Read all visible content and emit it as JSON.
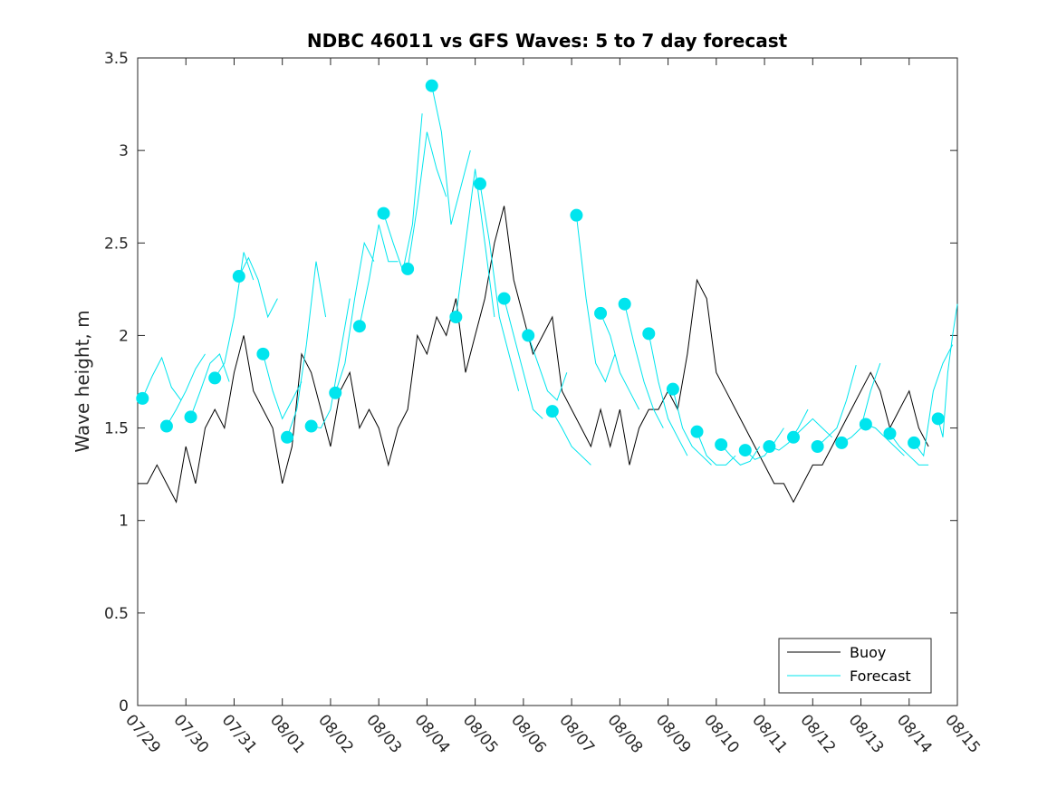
{
  "chart_data": {
    "type": "line",
    "title": "NDBC 46011 vs GFS Waves: 5 to 7 day forecast",
    "xlabel": "",
    "ylabel": "Wave height, m",
    "xlim": [
      0,
      17
    ],
    "ylim": [
      0,
      3.5
    ],
    "x_ticks": [
      "07/29",
      "07/30",
      "07/31",
      "08/01",
      "08/02",
      "08/03",
      "08/04",
      "08/05",
      "08/06",
      "08/07",
      "08/08",
      "08/09",
      "08/10",
      "08/11",
      "08/12",
      "08/13",
      "08/14",
      "08/15"
    ],
    "y_ticks": [
      "0",
      "0.5",
      "1",
      "1.5",
      "2",
      "2.5",
      "3",
      "3.5"
    ],
    "grid": false,
    "legend": {
      "position": "bottom-right",
      "entries": [
        "Buoy",
        "Forecast"
      ]
    },
    "colors": {
      "buoy": "#000000",
      "forecast": "#00e5ee"
    },
    "series": [
      {
        "name": "Buoy",
        "x": [
          0,
          0.2,
          0.4,
          0.6,
          0.8,
          1.0,
          1.2,
          1.4,
          1.6,
          1.8,
          2.0,
          2.2,
          2.4,
          2.6,
          2.8,
          3.0,
          3.2,
          3.4,
          3.6,
          3.8,
          4.0,
          4.2,
          4.4,
          4.6,
          4.8,
          5.0,
          5.2,
          5.4,
          5.6,
          5.8,
          6.0,
          6.2,
          6.4,
          6.6,
          6.8,
          7.0,
          7.2,
          7.4,
          7.6,
          7.8,
          8.0,
          8.2,
          8.4,
          8.6,
          8.8,
          9.0,
          9.2,
          9.4,
          9.6,
          9.8,
          10.0,
          10.2,
          10.4,
          10.6,
          10.8,
          11.0,
          11.2,
          11.4,
          11.6,
          11.8,
          12.0,
          12.2,
          12.4,
          12.6,
          12.8,
          13.0,
          13.2,
          13.4,
          13.6,
          13.8,
          14.0,
          14.2,
          14.4,
          14.6,
          14.8,
          15.0,
          15.2,
          15.4,
          15.6,
          15.8,
          16.0,
          16.2,
          16.4
        ],
        "values": [
          1.2,
          1.2,
          1.3,
          1.2,
          1.1,
          1.4,
          1.2,
          1.5,
          1.6,
          1.5,
          1.8,
          2.0,
          1.7,
          1.6,
          1.5,
          1.2,
          1.4,
          1.9,
          1.8,
          1.6,
          1.4,
          1.7,
          1.8,
          1.5,
          1.6,
          1.5,
          1.3,
          1.5,
          1.6,
          2.0,
          1.9,
          2.1,
          2.0,
          2.2,
          1.8,
          2.0,
          2.2,
          2.5,
          2.7,
          2.3,
          2.1,
          1.9,
          2.0,
          2.1,
          1.7,
          1.6,
          1.5,
          1.4,
          1.6,
          1.4,
          1.6,
          1.3,
          1.5,
          1.6,
          1.6,
          1.7,
          1.6,
          1.9,
          2.3,
          2.2,
          1.8,
          1.7,
          1.6,
          1.5,
          1.4,
          1.3,
          1.2,
          1.2,
          1.1,
          1.2,
          1.3,
          1.3,
          1.4,
          1.5,
          1.6,
          1.7,
          1.8,
          1.7,
          1.5,
          1.6,
          1.7,
          1.5,
          1.4
        ]
      },
      {
        "name": "",
        "x": [
          0.1,
          0.3,
          0.5,
          0.7,
          0.9
        ],
        "values": [
          1.66,
          1.78,
          1.88,
          1.72,
          1.65
        ]
      },
      {
        "name": "",
        "x": [
          0.6,
          0.8,
          1.0,
          1.2,
          1.4
        ],
        "values": [
          1.51,
          1.6,
          1.7,
          1.82,
          1.9
        ]
      },
      {
        "name": "",
        "x": [
          1.1,
          1.3,
          1.5,
          1.7,
          1.9
        ],
        "values": [
          1.56,
          1.7,
          1.85,
          1.9,
          1.75
        ]
      },
      {
        "name": "",
        "x": [
          1.6,
          1.8,
          2.0,
          2.2,
          2.4
        ],
        "values": [
          1.77,
          1.85,
          2.1,
          2.45,
          2.3
        ]
      },
      {
        "name": "",
        "x": [
          2.1,
          2.3,
          2.5,
          2.7,
          2.9
        ],
        "values": [
          2.32,
          2.42,
          2.3,
          2.1,
          2.2
        ]
      },
      {
        "name": "",
        "x": [
          2.6,
          2.8,
          3.0,
          3.2,
          3.4
        ],
        "values": [
          1.9,
          1.7,
          1.55,
          1.65,
          1.75
        ]
      },
      {
        "name": "",
        "x": [
          3.1,
          3.3,
          3.5,
          3.7,
          3.9
        ],
        "values": [
          1.45,
          1.6,
          1.95,
          2.4,
          2.1
        ]
      },
      {
        "name": "",
        "x": [
          3.6,
          3.8,
          4.0,
          4.2,
          4.4
        ],
        "values": [
          1.51,
          1.5,
          1.6,
          1.9,
          2.2
        ]
      },
      {
        "name": "",
        "x": [
          4.1,
          4.3,
          4.5,
          4.7,
          4.9
        ],
        "values": [
          1.69,
          1.85,
          2.2,
          2.5,
          2.4
        ]
      },
      {
        "name": "",
        "x": [
          4.6,
          4.8,
          5.0,
          5.2,
          5.4
        ],
        "values": [
          2.05,
          2.3,
          2.6,
          2.4,
          2.4
        ]
      },
      {
        "name": "",
        "x": [
          5.1,
          5.3,
          5.5,
          5.7,
          5.9
        ],
        "values": [
          2.66,
          2.5,
          2.35,
          2.6,
          3.2
        ]
      },
      {
        "name": "",
        "x": [
          5.6,
          5.8,
          6.0,
          6.2,
          6.4
        ],
        "values": [
          2.36,
          2.7,
          3.1,
          2.9,
          2.75
        ]
      },
      {
        "name": "",
        "x": [
          6.1,
          6.3,
          6.5,
          6.7,
          6.9
        ],
        "values": [
          3.35,
          3.1,
          2.6,
          2.8,
          3.0
        ]
      },
      {
        "name": "",
        "x": [
          6.6,
          6.8,
          7.0,
          7.2,
          7.4
        ],
        "values": [
          2.1,
          2.5,
          2.9,
          2.5,
          2.1
        ]
      },
      {
        "name": "",
        "x": [
          7.1,
          7.3,
          7.5,
          7.7,
          7.9
        ],
        "values": [
          2.82,
          2.5,
          2.1,
          1.9,
          1.7
        ]
      },
      {
        "name": "",
        "x": [
          7.6,
          7.8,
          8.0,
          8.2,
          8.4
        ],
        "values": [
          2.2,
          2.0,
          1.8,
          1.6,
          1.55
        ]
      },
      {
        "name": "",
        "x": [
          8.1,
          8.3,
          8.5,
          8.7,
          8.9
        ],
        "values": [
          2.0,
          1.85,
          1.7,
          1.65,
          1.8
        ]
      },
      {
        "name": "",
        "x": [
          8.6,
          8.8,
          9.0,
          9.2,
          9.4
        ],
        "values": [
          1.59,
          1.5,
          1.4,
          1.35,
          1.3
        ]
      },
      {
        "name": "",
        "x": [
          9.1,
          9.3,
          9.5,
          9.7,
          9.9
        ],
        "values": [
          2.65,
          2.2,
          1.85,
          1.75,
          1.9
        ]
      },
      {
        "name": "",
        "x": [
          9.6,
          9.8,
          10.0,
          10.2,
          10.4
        ],
        "values": [
          2.12,
          2.0,
          1.8,
          1.7,
          1.6
        ]
      },
      {
        "name": "",
        "x": [
          10.1,
          10.3,
          10.5,
          10.7,
          10.9
        ],
        "values": [
          2.17,
          1.95,
          1.75,
          1.6,
          1.5
        ]
      },
      {
        "name": "",
        "x": [
          10.6,
          10.8,
          11.0,
          11.2,
          11.4
        ],
        "values": [
          2.01,
          1.75,
          1.55,
          1.45,
          1.35
        ]
      },
      {
        "name": "",
        "x": [
          11.1,
          11.3,
          11.5,
          11.7,
          11.9
        ],
        "values": [
          1.71,
          1.5,
          1.4,
          1.35,
          1.3
        ]
      },
      {
        "name": "",
        "x": [
          11.6,
          11.8,
          12.0,
          12.2,
          12.4
        ],
        "values": [
          1.48,
          1.35,
          1.3,
          1.3,
          1.35
        ]
      },
      {
        "name": "",
        "x": [
          12.1,
          12.3,
          12.5,
          12.7,
          12.9
        ],
        "values": [
          1.41,
          1.35,
          1.3,
          1.32,
          1.4
        ]
      },
      {
        "name": "",
        "x": [
          12.6,
          12.8,
          13.0,
          13.2,
          13.4
        ],
        "values": [
          1.38,
          1.33,
          1.35,
          1.42,
          1.5
        ]
      },
      {
        "name": "",
        "x": [
          13.1,
          13.3,
          13.5,
          13.7,
          13.9
        ],
        "values": [
          1.4,
          1.38,
          1.42,
          1.5,
          1.6
        ]
      },
      {
        "name": "",
        "x": [
          13.6,
          13.8,
          14.0,
          14.2,
          14.4
        ],
        "values": [
          1.45,
          1.5,
          1.55,
          1.5,
          1.45
        ]
      },
      {
        "name": "",
        "x": [
          14.1,
          14.3,
          14.5,
          14.7,
          14.9
        ],
        "values": [
          1.4,
          1.45,
          1.5,
          1.65,
          1.84
        ]
      },
      {
        "name": "",
        "x": [
          14.6,
          14.8,
          15.0,
          15.2,
          15.4
        ],
        "values": [
          1.42,
          1.45,
          1.5,
          1.7,
          1.85
        ]
      },
      {
        "name": "",
        "x": [
          15.1,
          15.3,
          15.5,
          15.7,
          15.9
        ],
        "values": [
          1.52,
          1.5,
          1.45,
          1.4,
          1.35
        ]
      },
      {
        "name": "",
        "x": [
          15.6,
          15.8,
          16.0,
          16.2,
          16.4
        ],
        "values": [
          1.47,
          1.4,
          1.35,
          1.3,
          1.3
        ]
      },
      {
        "name": "",
        "x": [
          16.1,
          16.3,
          16.5,
          16.7,
          16.9
        ],
        "values": [
          1.42,
          1.35,
          1.7,
          1.85,
          1.95
        ]
      },
      {
        "name": "",
        "x": [
          16.6,
          16.7,
          16.8,
          16.9,
          17.0
        ],
        "values": [
          1.55,
          1.45,
          1.8,
          2.0,
          2.17
        ]
      }
    ]
  }
}
